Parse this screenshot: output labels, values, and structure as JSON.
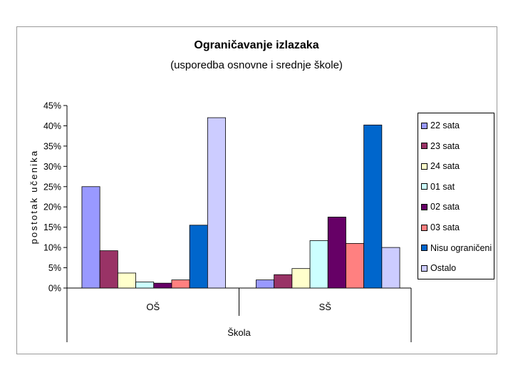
{
  "chart_data": {
    "type": "bar",
    "title": "Ograničavanje izlazaka",
    "subtitle": "(usporedba osnovne i srednje škole)",
    "xlabel": "Škola",
    "ylabel": "postotak učenika",
    "categories": [
      "OŠ",
      "SŠ"
    ],
    "ylim": [
      0,
      45
    ],
    "yticks": [
      "0%",
      "5%",
      "10%",
      "15%",
      "20%",
      "25%",
      "30%",
      "35%",
      "40%",
      "45%"
    ],
    "grid": false,
    "legend_position": "right",
    "series": [
      {
        "name": "22 sata",
        "values": [
          25.0,
          2.0
        ],
        "color": "#9999ff"
      },
      {
        "name": "23 sata",
        "values": [
          9.2,
          3.3
        ],
        "color": "#993366"
      },
      {
        "name": "24 sata",
        "values": [
          3.7,
          4.8
        ],
        "color": "#ffffcc"
      },
      {
        "name": "01 sat",
        "values": [
          1.5,
          11.7
        ],
        "color": "#ccffff"
      },
      {
        "name": "02 sata",
        "values": [
          1.2,
          17.5
        ],
        "color": "#660066"
      },
      {
        "name": "03 sata",
        "values": [
          2.0,
          11.0
        ],
        "color": "#ff8080"
      },
      {
        "name": "Nisu ograničeni",
        "values": [
          15.5,
          40.2
        ],
        "color": "#0066cc"
      },
      {
        "name": "Ostalo",
        "values": [
          42.0,
          10.0
        ],
        "color": "#ccccff"
      }
    ]
  }
}
